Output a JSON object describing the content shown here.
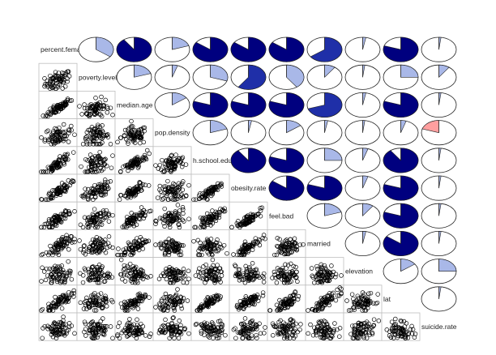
{
  "chart_data": {
    "type": "corrgram",
    "title": "",
    "lower_panel": "scatter",
    "upper_panel": "pie",
    "diagonal_panel": "variable-name",
    "colors": {
      "positive_strong": "#00007f",
      "positive_mid": "#1f2fa8",
      "positive_light": "#a9b8e8",
      "negative": "#ff9f9f",
      "pie_background": "#ffffff",
      "points": "#000000",
      "panel_border": "#bfbfbf"
    },
    "variables": [
      "percent.female",
      "poverty.level",
      "median.age",
      "pop.density",
      "h.school.educated",
      "obesity.rate",
      "feel.bad",
      "married",
      "elevation",
      "lat",
      "suicide.rate"
    ],
    "correlations": [
      [
        1.0,
        0.35,
        0.9,
        0.2,
        0.85,
        0.85,
        0.85,
        0.65,
        0.03,
        0.8,
        0.02
      ],
      [
        0.35,
        1.0,
        0.2,
        0.05,
        0.3,
        0.6,
        0.4,
        0.1,
        0.02,
        0.25,
        0.1
      ],
      [
        0.9,
        0.2,
        1.0,
        0.15,
        0.8,
        0.8,
        0.8,
        0.7,
        0.03,
        0.8,
        0.02
      ],
      [
        0.2,
        0.05,
        0.15,
        1.0,
        0.2,
        0.03,
        0.15,
        0.03,
        0.02,
        0.05,
        -0.2
      ],
      [
        0.85,
        0.3,
        0.8,
        0.2,
        1.0,
        0.9,
        0.8,
        0.25,
        0.05,
        0.9,
        0.02
      ],
      [
        0.85,
        0.6,
        0.8,
        0.03,
        0.9,
        1.0,
        0.85,
        0.8,
        0.05,
        0.8,
        0.02
      ],
      [
        0.85,
        0.4,
        0.8,
        0.15,
        0.8,
        0.85,
        1.0,
        0.2,
        0.1,
        0.8,
        0.02
      ],
      [
        0.65,
        0.1,
        0.7,
        0.03,
        0.25,
        0.8,
        0.2,
        1.0,
        0.03,
        0.85,
        0.02
      ],
      [
        0.03,
        0.02,
        0.03,
        0.02,
        0.05,
        0.05,
        0.1,
        0.03,
        1.0,
        0.15,
        0.25
      ],
      [
        0.8,
        0.25,
        0.8,
        0.05,
        0.9,
        0.8,
        0.8,
        0.85,
        0.15,
        1.0,
        0.02
      ],
      [
        0.02,
        0.1,
        0.02,
        -0.2,
        0.02,
        0.02,
        0.02,
        0.02,
        0.25,
        0.02,
        1.0
      ]
    ]
  }
}
